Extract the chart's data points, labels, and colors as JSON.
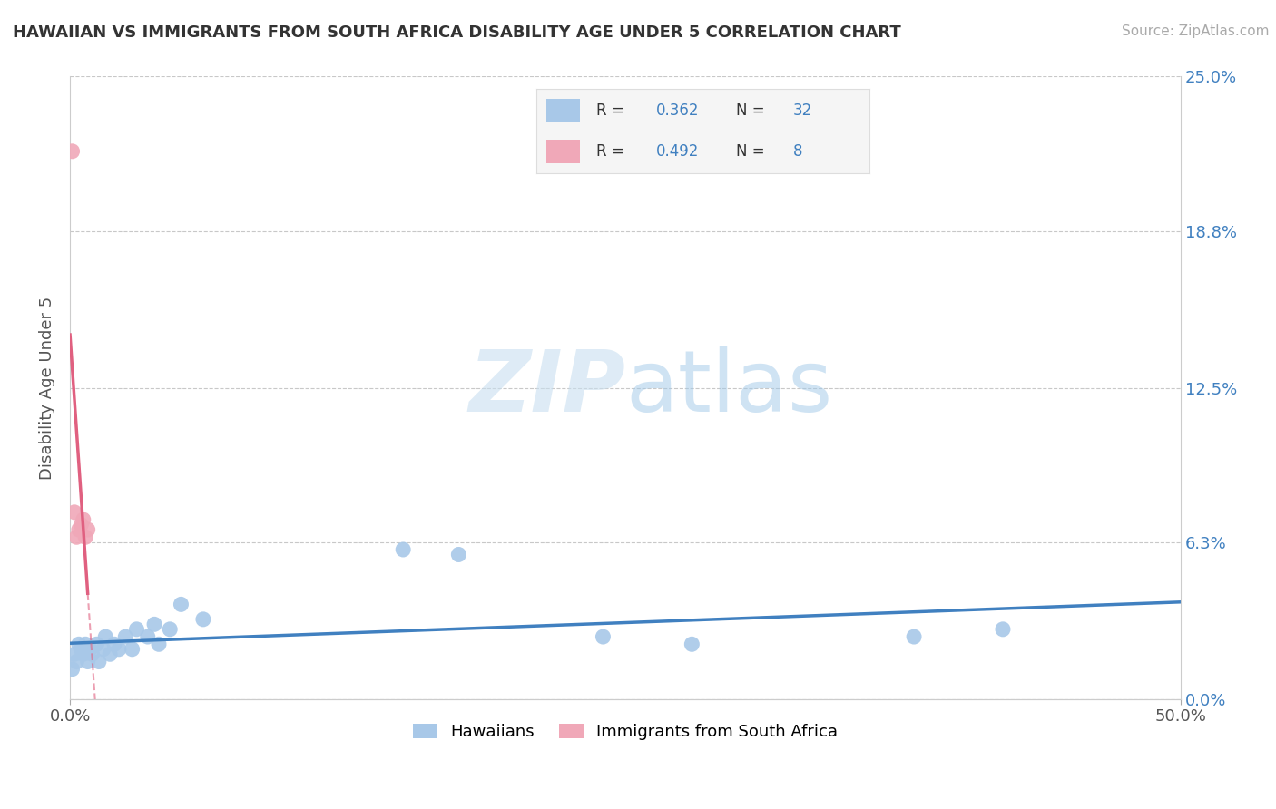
{
  "title": "HAWAIIAN VS IMMIGRANTS FROM SOUTH AFRICA DISABILITY AGE UNDER 5 CORRELATION CHART",
  "source": "Source: ZipAtlas.com",
  "ylabel_label": "Disability Age Under 5",
  "xlim": [
    0.0,
    0.5
  ],
  "ylim": [
    0.0,
    0.25
  ],
  "ytick_values": [
    0.0,
    0.063,
    0.125,
    0.188,
    0.25
  ],
  "ytick_labels": [
    "0.0%",
    "6.3%",
    "12.5%",
    "18.8%",
    "25.0%"
  ],
  "xtick_values": [
    0.0,
    0.5
  ],
  "xtick_labels": [
    "0.0%",
    "50.0%"
  ],
  "grid_color": "#c8c8c8",
  "background_color": "#ffffff",
  "hawaiian_color": "#a8c8e8",
  "sa_color": "#f0a8b8",
  "hawaiian_line_color": "#4080c0",
  "sa_line_color": "#e06080",
  "legend_R1": "0.362",
  "legend_N1": "32",
  "legend_R2": "0.492",
  "legend_N2": "8",
  "watermark_zip": "ZIP",
  "watermark_atlas": "atlas",
  "bottom_legend": [
    "Hawaiians",
    "Immigrants from South Africa"
  ],
  "hawaiian_x": [
    0.001,
    0.002,
    0.003,
    0.004,
    0.005,
    0.006,
    0.007,
    0.008,
    0.009,
    0.01,
    0.012,
    0.013,
    0.015,
    0.016,
    0.018,
    0.02,
    0.022,
    0.025,
    0.028,
    0.03,
    0.035,
    0.038,
    0.04,
    0.045,
    0.05,
    0.06,
    0.15,
    0.175,
    0.24,
    0.28,
    0.38,
    0.42
  ],
  "hawaiian_y": [
    0.012,
    0.018,
    0.015,
    0.022,
    0.02,
    0.018,
    0.022,
    0.015,
    0.02,
    0.018,
    0.022,
    0.015,
    0.02,
    0.025,
    0.018,
    0.022,
    0.02,
    0.025,
    0.02,
    0.028,
    0.025,
    0.03,
    0.022,
    0.028,
    0.038,
    0.032,
    0.06,
    0.058,
    0.025,
    0.022,
    0.025,
    0.028
  ],
  "sa_x": [
    0.001,
    0.002,
    0.003,
    0.004,
    0.005,
    0.006,
    0.007,
    0.008
  ],
  "sa_y": [
    0.22,
    0.075,
    0.065,
    0.068,
    0.07,
    0.072,
    0.065,
    0.068
  ],
  "sa_line_x0": 0.0,
  "sa_line_x1": 0.008,
  "sa_line_dash_x1": 0.16
}
